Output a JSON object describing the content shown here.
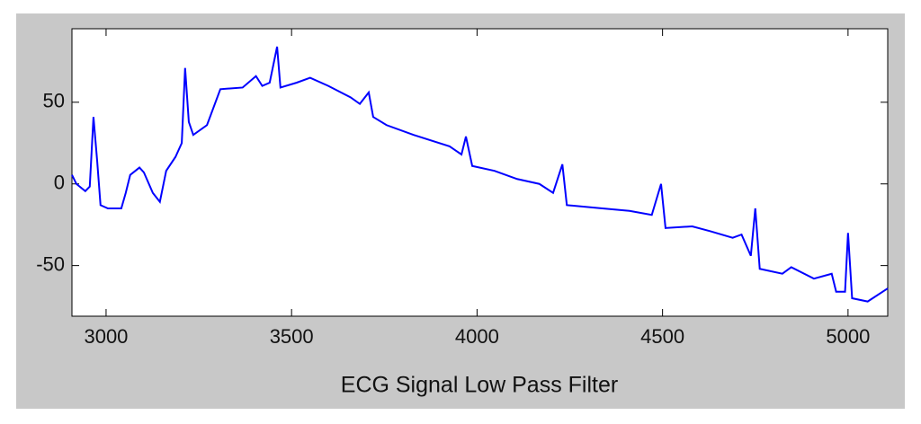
{
  "chart_data": {
    "type": "line",
    "xlabel": "ECG Signal Low Pass Filter",
    "x": [
      2908,
      2920,
      2944,
      2956,
      2966,
      2976,
      2985,
      3005,
      3041,
      3053,
      3065,
      3090,
      3102,
      3126,
      3145,
      3162,
      3187,
      3204,
      3213,
      3223,
      3235,
      3272,
      3308,
      3368,
      3404,
      3421,
      3441,
      3461,
      3470,
      3514,
      3550,
      3599,
      3659,
      3684,
      3708,
      3720,
      3756,
      3829,
      3926,
      3958,
      3970,
      3987,
      4047,
      4108,
      4168,
      4205,
      4230,
      4242,
      4338,
      4411,
      4471,
      4496,
      4508,
      4580,
      4629,
      4689,
      4713,
      4738,
      4750,
      4762,
      4823,
      4847,
      4908,
      4956,
      4968,
      4992,
      5000,
      5011,
      5053,
      5107
    ],
    "series": [
      {
        "name": "ECG",
        "color": "#0000ff",
        "values": [
          5.5,
          0,
          -4.4,
          -1.6,
          41,
          14,
          -13,
          -15,
          -15,
          -5.5,
          5.5,
          10,
          7,
          -5.5,
          -11,
          8,
          16.5,
          25,
          71,
          38,
          30,
          36,
          58,
          59,
          66,
          60,
          62,
          84,
          59,
          62,
          65,
          60,
          53,
          49,
          56,
          41,
          36,
          30,
          23,
          18,
          29,
          11,
          8,
          3,
          0,
          -5.5,
          12,
          -13,
          -15,
          -16.5,
          -19,
          0,
          -27,
          -26,
          -29,
          -33,
          -31,
          -44,
          -15,
          -52,
          -55,
          -51,
          -58,
          -55,
          -66,
          -66,
          -30,
          -70,
          -72,
          -64
        ]
      }
    ],
    "xlim": [
      2908,
      5107
    ],
    "ylim": [
      -81,
      95
    ],
    "xticks": [
      3000,
      3500,
      4000,
      4500,
      5000
    ],
    "yticks": [
      -50,
      0,
      50
    ],
    "grid": false
  }
}
